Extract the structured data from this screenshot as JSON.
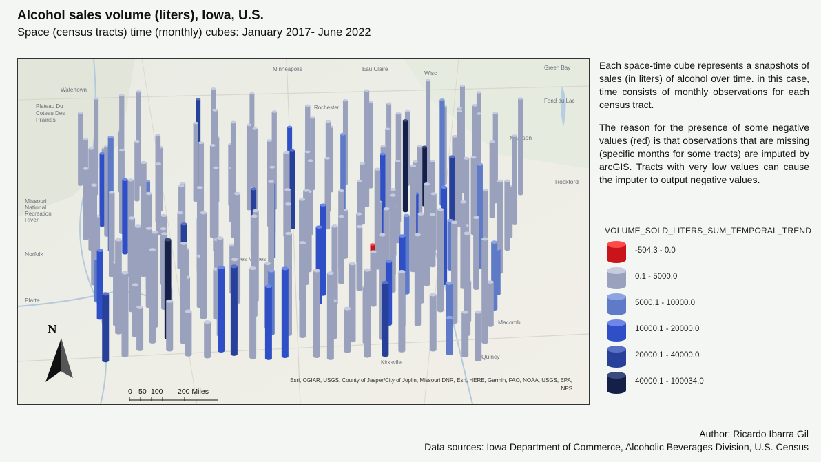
{
  "header": {
    "title": "Alcohol sales volume (liters), Iowa, U.S.",
    "subtitle": "Space (census tracts) time (monthly) cubes: January 2017- June 2022"
  },
  "map": {
    "place_labels": [
      "Minneapolis",
      "Eau Claire",
      "Wisc",
      "Green Bay",
      "Watertown",
      "Plateau Du",
      "Coteau Des",
      "Prairies",
      "Rochester",
      "Fond du Lac",
      "Madison",
      "Rockford",
      "Missouri",
      "National",
      "Recreation",
      "River",
      "Norfolk",
      "Platte",
      "Des Moines",
      "Quincy",
      "Kirksville",
      "Macomb"
    ],
    "attribution": "Esri, CGIAR, USGS, County of Jasper/City of Joplin, Missouri DNR, Esri, HERE, Garmin, FAO, NOAA, USGS, EPA, NPS",
    "scale_ticks": [
      "0",
      "50",
      "100",
      "200 Miles"
    ],
    "north_label": "N",
    "icons": [
      "north-arrow-icon"
    ]
  },
  "description": {
    "p1": "Each space-time cube represents a snapshots of sales (in liters) of alcohol over time. in this case, time consists of monthly observations for each census tract.",
    "p2": "The reason for the presence of some negative values (red) is that observations that are missing (specific months for some tracts) are imputed by arcGIS. Tracts with very low values can cause the imputer to output negative values."
  },
  "legend": {
    "title": "VOLUME_SOLD_LITERS_SUM_TEMPORAL_TREND",
    "items": [
      {
        "label": "-504.3 - 0.0",
        "color": "#c8141a",
        "top": "#ff4a4a"
      },
      {
        "label": "0.1 - 5000.0",
        "color": "#9aa1bd",
        "top": "#c6cbe0"
      },
      {
        "label": "5000.1 - 10000.0",
        "color": "#5f7ac7",
        "top": "#8ea4e0"
      },
      {
        "label": "10000.1 - 20000.0",
        "color": "#2f4fc7",
        "top": "#6e87e6"
      },
      {
        "label": "20000.1 - 40000.0",
        "color": "#27409a",
        "top": "#5a70c4"
      },
      {
        "label": "40000.1 - 100034.0",
        "color": "#142048",
        "top": "#3a4a7e"
      }
    ]
  },
  "footer": {
    "author": "Author: Ricardo Ibarra Gil",
    "sources": "Data sources: Iowa Department of Commerce, Alcoholic Beverages Division, U.S. Census"
  }
}
